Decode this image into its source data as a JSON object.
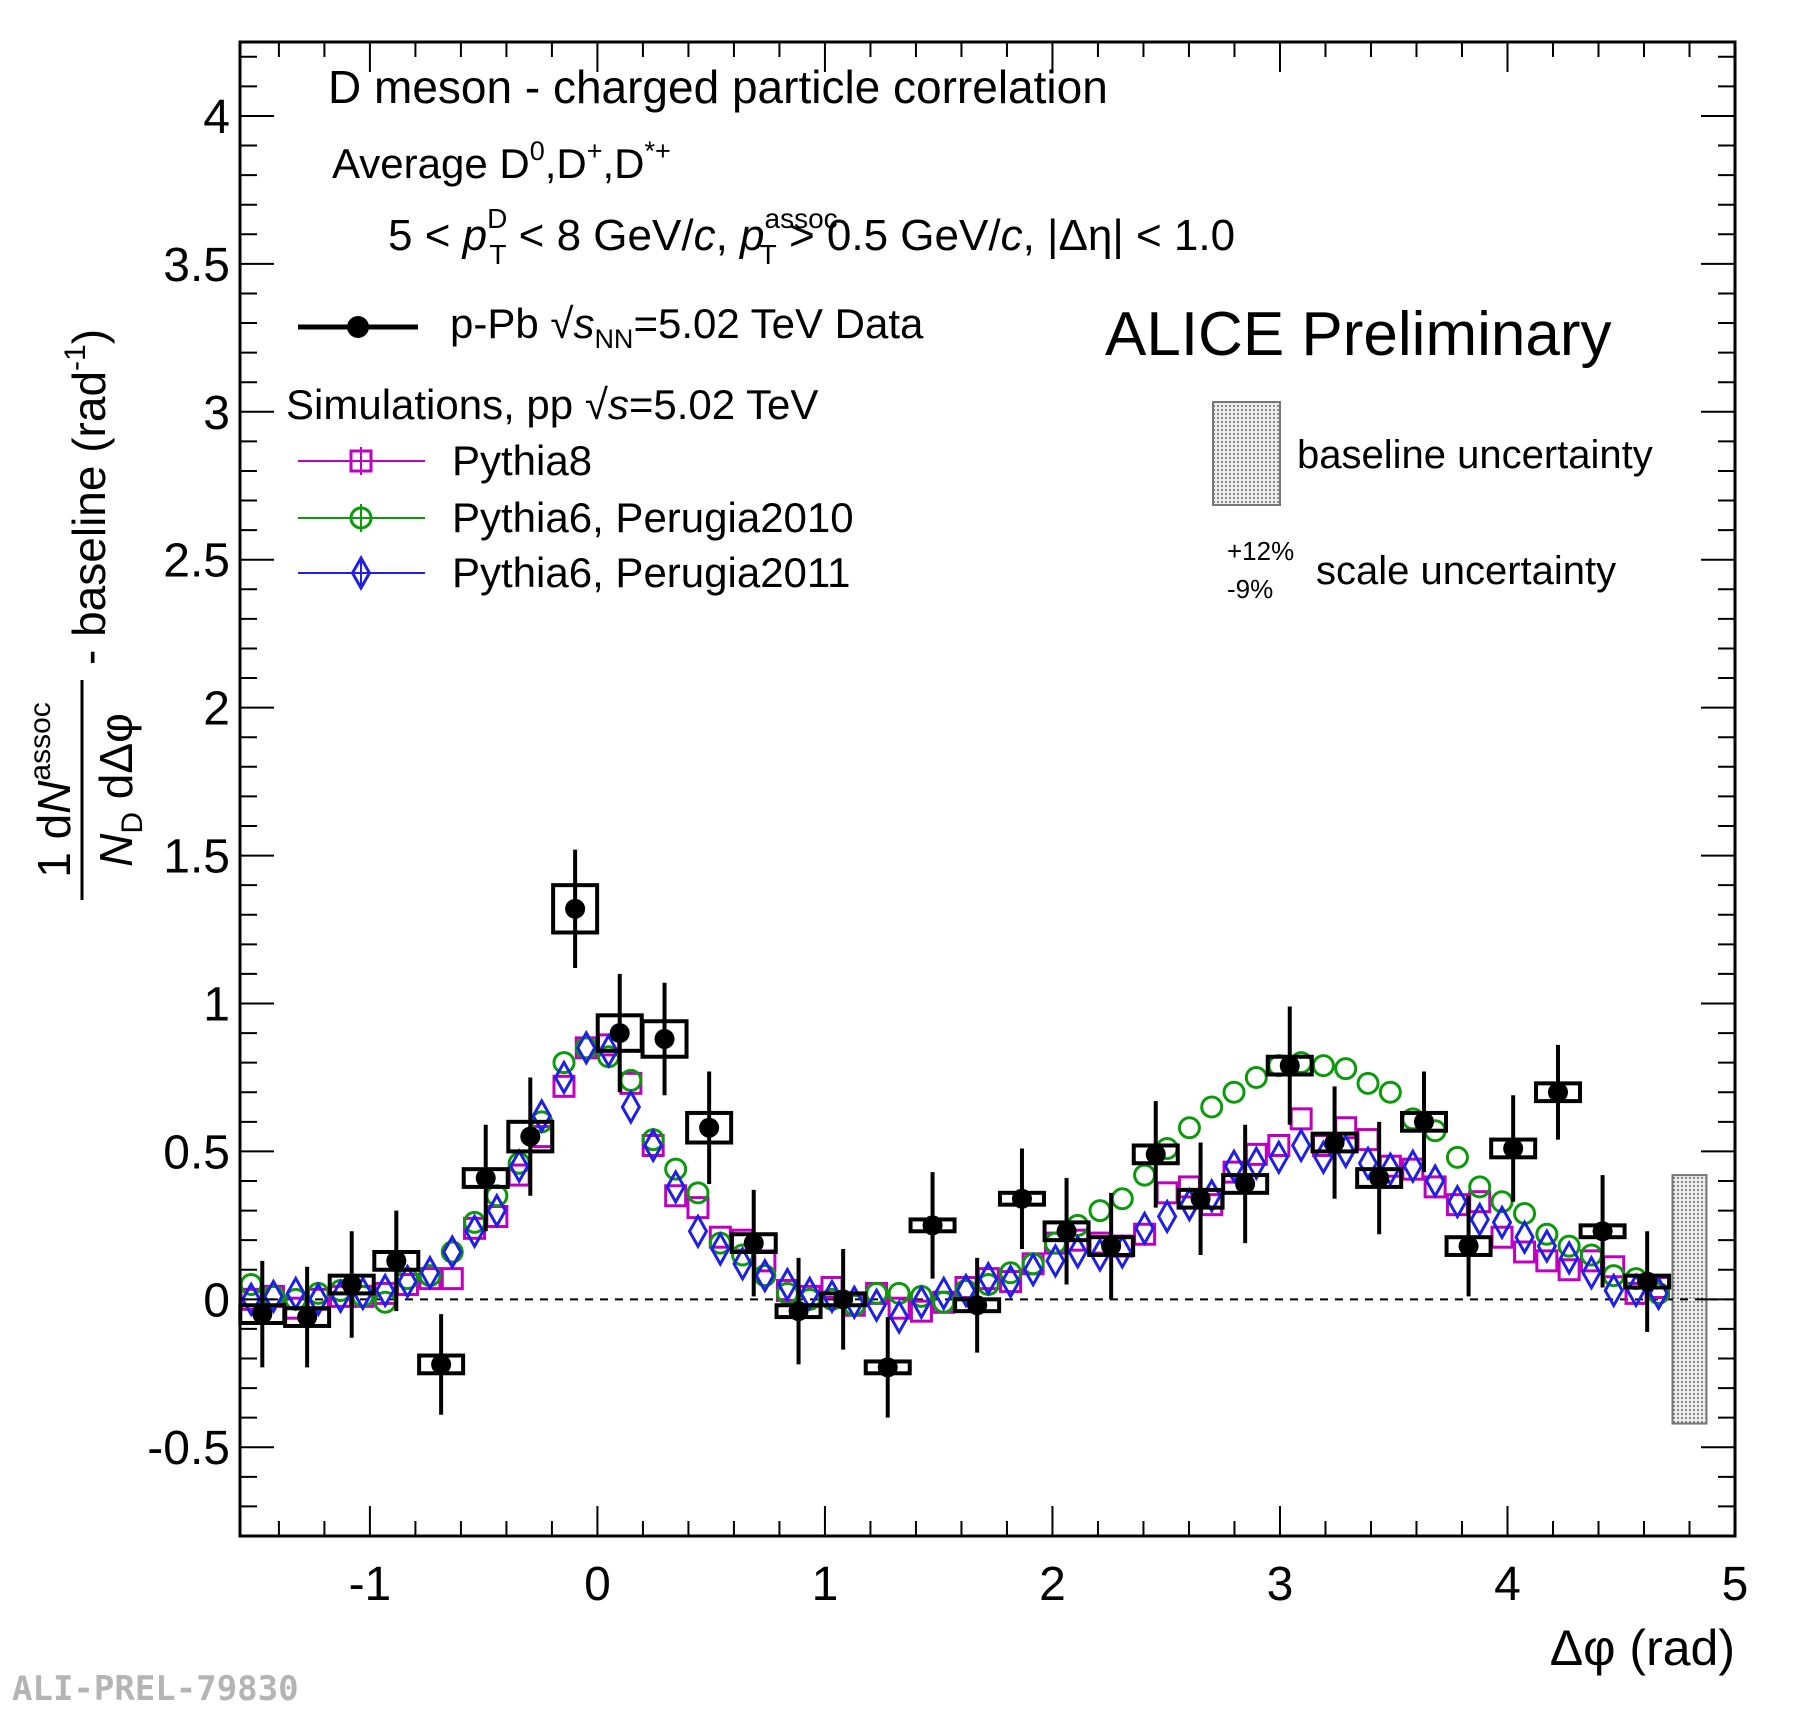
{
  "chart_data": {
    "type": "scatter",
    "xlabel": "Δφ (rad)",
    "ylabel": "1/N_D dN^assoc/dΔφ - baseline (rad^-1)",
    "xlim": [
      -1.571,
      5.0
    ],
    "ylim": [
      -0.8,
      4.25
    ],
    "x_ticks": [
      -1,
      0,
      1,
      2,
      3,
      4,
      5
    ],
    "y_ticks": [
      -0.5,
      0,
      0.5,
      1,
      1.5,
      2,
      2.5,
      3,
      3.5,
      4
    ],
    "x_tick_labels": [
      "-1",
      "0",
      "1",
      "2",
      "3",
      "4",
      "5"
    ],
    "y_tick_labels": [
      "-0.5",
      "0",
      "0.5",
      "1",
      "1.5",
      "2",
      "2.5",
      "3",
      "3.5",
      "4"
    ],
    "grid": false,
    "legend_position": "top-left",
    "annotations": {
      "title": "D meson  - charged particle correlation",
      "average": "Average D⁰,D⁺,D*⁺",
      "kinematics": "5 < pT^D < 8 GeV/c, pT^assoc > 0.5 GeV/c, |Δη| < 1.0",
      "preliminary": "ALICE Preliminary",
      "simulations_header": "Simulations, pp √s=5.02 TeV",
      "baseline_uncertainty": "baseline uncertainty",
      "scale_uncertainty": "scale uncertainty",
      "scale_up": "+12%",
      "scale_down": "-9%",
      "watermark": "ALI-PREL-79830"
    },
    "baseline_uncertainty_band": {
      "x": 4.8,
      "low": -0.42,
      "high": 0.42
    },
    "data": {
      "name": "p-Pb √sNN=5.02 TeV Data",
      "color": "#000000",
      "x": [
        -1.473,
        -1.276,
        -1.08,
        -0.884,
        -0.687,
        -0.491,
        -0.295,
        -0.098,
        0.098,
        0.295,
        0.491,
        0.687,
        0.884,
        1.08,
        1.276,
        1.473,
        1.669,
        1.866,
        2.062,
        2.258,
        2.454,
        2.651,
        2.847,
        3.043,
        3.24,
        3.436,
        3.633,
        3.829,
        4.025,
        4.222,
        4.418,
        4.614
      ],
      "y": [
        -0.05,
        -0.06,
        0.05,
        0.13,
        -0.22,
        0.41,
        0.55,
        1.32,
        0.9,
        0.88,
        0.58,
        0.19,
        -0.04,
        0.0,
        -0.23,
        0.25,
        -0.02,
        0.34,
        0.23,
        0.18,
        0.49,
        0.34,
        0.39,
        0.79,
        0.53,
        0.41,
        0.6,
        0.18,
        0.51,
        0.7,
        0.23,
        0.06
      ],
      "stat_err": [
        0.18,
        0.17,
        0.18,
        0.17,
        0.17,
        0.18,
        0.2,
        0.2,
        0.2,
        0.19,
        0.19,
        0.18,
        0.18,
        0.17,
        0.17,
        0.18,
        0.16,
        0.17,
        0.18,
        0.18,
        0.18,
        0.19,
        0.2,
        0.2,
        0.19,
        0.19,
        0.17,
        0.17,
        0.18,
        0.16,
        0.19,
        0.17
      ],
      "sys_err": [
        0.03,
        0.03,
        0.03,
        0.03,
        0.03,
        0.03,
        0.05,
        0.08,
        0.06,
        0.06,
        0.05,
        0.03,
        0.02,
        0.02,
        0.02,
        0.02,
        0.02,
        0.02,
        0.03,
        0.03,
        0.03,
        0.03,
        0.03,
        0.03,
        0.03,
        0.03,
        0.03,
        0.03,
        0.03,
        0.03,
        0.02,
        0.02
      ]
    },
    "series": [
      {
        "name": "Pythia8",
        "marker": "square",
        "color": "#c000c0",
        "x": [
          -1.522,
          -1.424,
          -1.326,
          -1.227,
          -1.129,
          -1.031,
          -0.933,
          -0.835,
          -0.736,
          -0.638,
          -0.54,
          -0.442,
          -0.344,
          -0.245,
          -0.147,
          -0.049,
          0.049,
          0.147,
          0.245,
          0.344,
          0.442,
          0.54,
          0.638,
          0.736,
          0.835,
          0.933,
          1.031,
          1.129,
          1.227,
          1.326,
          1.424,
          1.522,
          1.62,
          1.718,
          1.816,
          1.915,
          2.013,
          2.111,
          2.209,
          2.307,
          2.405,
          2.504,
          2.602,
          2.7,
          2.798,
          2.896,
          2.995,
          3.093,
          3.191,
          3.289,
          3.387,
          3.485,
          3.584,
          3.682,
          3.78,
          3.878,
          3.976,
          4.075,
          4.173,
          4.271,
          4.369,
          4.467,
          4.565,
          4.664
        ],
        "y": [
          0.0,
          0.01,
          -0.03,
          0.0,
          0.01,
          0.01,
          0.02,
          0.05,
          0.07,
          0.07,
          0.24,
          0.28,
          0.42,
          0.55,
          0.72,
          0.85,
          0.86,
          0.73,
          0.52,
          0.35,
          0.31,
          0.21,
          0.2,
          0.13,
          0.03,
          0.01,
          0.04,
          -0.02,
          0.02,
          -0.03,
          -0.04,
          -0.01,
          0.04,
          0.07,
          0.06,
          0.12,
          0.19,
          0.2,
          0.19,
          0.18,
          0.22,
          0.36,
          0.38,
          0.32,
          0.43,
          0.49,
          0.52,
          0.61,
          0.52,
          0.58,
          0.54,
          0.45,
          0.44,
          0.38,
          0.32,
          0.33,
          0.21,
          0.16,
          0.13,
          0.1,
          0.13,
          0.11,
          0.02,
          0.04
        ]
      },
      {
        "name": "Pythia6, Perugia2010",
        "marker": "circle",
        "color": "#0a9a0a",
        "x": [
          -1.522,
          -1.424,
          -1.326,
          -1.227,
          -1.129,
          -1.031,
          -0.933,
          -0.835,
          -0.736,
          -0.638,
          -0.54,
          -0.442,
          -0.344,
          -0.245,
          -0.147,
          -0.049,
          0.049,
          0.147,
          0.245,
          0.344,
          0.442,
          0.54,
          0.638,
          0.736,
          0.835,
          0.933,
          1.031,
          1.129,
          1.227,
          1.326,
          1.424,
          1.522,
          1.62,
          1.718,
          1.816,
          1.915,
          2.013,
          2.111,
          2.209,
          2.307,
          2.405,
          2.504,
          2.602,
          2.7,
          2.798,
          2.896,
          2.995,
          3.093,
          3.191,
          3.289,
          3.387,
          3.485,
          3.584,
          3.682,
          3.78,
          3.878,
          3.976,
          4.075,
          4.173,
          4.271,
          4.369,
          4.467,
          4.565,
          4.664
        ],
        "y": [
          0.05,
          0.01,
          0.0,
          0.02,
          0.03,
          0.01,
          -0.01,
          0.07,
          0.08,
          0.16,
          0.26,
          0.35,
          0.46,
          0.6,
          0.8,
          0.85,
          0.82,
          0.74,
          0.54,
          0.44,
          0.36,
          0.19,
          0.15,
          0.08,
          0.02,
          0.0,
          0.0,
          -0.02,
          0.02,
          0.02,
          0.01,
          -0.01,
          0.03,
          0.05,
          0.09,
          0.12,
          0.19,
          0.25,
          0.3,
          0.34,
          0.42,
          0.51,
          0.58,
          0.65,
          0.7,
          0.75,
          0.79,
          0.8,
          0.79,
          0.78,
          0.73,
          0.7,
          0.61,
          0.57,
          0.48,
          0.38,
          0.33,
          0.29,
          0.22,
          0.18,
          0.15,
          0.08,
          0.07,
          0.02
        ]
      },
      {
        "name": "Pythia6, Perugia2011",
        "marker": "diamond",
        "color": "#1f1fe6",
        "x": [
          -1.522,
          -1.424,
          -1.326,
          -1.227,
          -1.129,
          -1.031,
          -0.933,
          -0.835,
          -0.736,
          -0.638,
          -0.54,
          -0.442,
          -0.344,
          -0.245,
          -0.147,
          -0.049,
          0.049,
          0.147,
          0.245,
          0.344,
          0.442,
          0.54,
          0.638,
          0.736,
          0.835,
          0.933,
          1.031,
          1.129,
          1.227,
          1.326,
          1.424,
          1.522,
          1.62,
          1.718,
          1.816,
          1.915,
          2.013,
          2.111,
          2.209,
          2.307,
          2.405,
          2.504,
          2.602,
          2.7,
          2.798,
          2.896,
          2.995,
          3.093,
          3.191,
          3.289,
          3.387,
          3.485,
          3.584,
          3.682,
          3.78,
          3.878,
          3.976,
          4.075,
          4.173,
          4.271,
          4.369,
          4.467,
          4.565,
          4.664
        ],
        "y": [
          0.0,
          0.01,
          0.02,
          0.0,
          0.01,
          0.02,
          0.03,
          0.06,
          0.09,
          0.16,
          0.23,
          0.3,
          0.45,
          0.62,
          0.75,
          0.85,
          0.84,
          0.65,
          0.52,
          0.38,
          0.23,
          0.17,
          0.12,
          0.08,
          0.05,
          0.02,
          0.01,
          -0.01,
          -0.02,
          -0.06,
          -0.01,
          0.02,
          0.03,
          0.07,
          0.06,
          0.1,
          0.13,
          0.16,
          0.15,
          0.16,
          0.24,
          0.28,
          0.32,
          0.35,
          0.45,
          0.46,
          0.48,
          0.52,
          0.48,
          0.5,
          0.46,
          0.44,
          0.45,
          0.4,
          0.33,
          0.27,
          0.26,
          0.21,
          0.18,
          0.14,
          0.09,
          0.03,
          0.03,
          0.02
        ]
      }
    ]
  }
}
